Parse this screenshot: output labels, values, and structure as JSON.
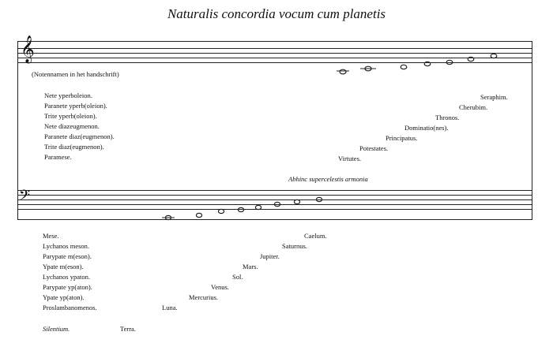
{
  "title": "Naturalis concordia vocum cum planetis",
  "upper": {
    "clef_icon": "treble-clef-icon",
    "note": "(Notennamen in het handschrift)",
    "left_labels": [
      "Nete yperboleion.",
      "Paranete yperb(oleion).",
      "Trite yperb(oleion).",
      "Nete diazeugmenon.",
      "Paranete diaz(eugmenon).",
      "Trite diaz(eugmenon).",
      "Paramese."
    ],
    "right_labels": [
      "Seraphim.",
      "Cherubim.",
      "Thronos.",
      "Dominatio(nes).",
      "Principatus.",
      "Potestates.",
      "Virtutes."
    ],
    "caption": "Abhinc supercelestis armonia"
  },
  "lower": {
    "clef_icon": "bass-clef-icon",
    "left_labels": [
      "Mese.",
      "Lychanos meson.",
      "Parypate m(eson).",
      "Ypate m(eson).",
      "Lychanos ypaton.",
      "Parypate yp(aton).",
      "Ypate yp(aton).",
      "Proslambanomenos."
    ],
    "right_labels": [
      "Caelum.",
      "Saturnus.",
      "Jupiter.",
      "Mars.",
      "Sol.",
      "Venus.",
      "Mercurius.",
      "Luna."
    ],
    "silentium": "Silentium.",
    "terra": "Terra."
  }
}
